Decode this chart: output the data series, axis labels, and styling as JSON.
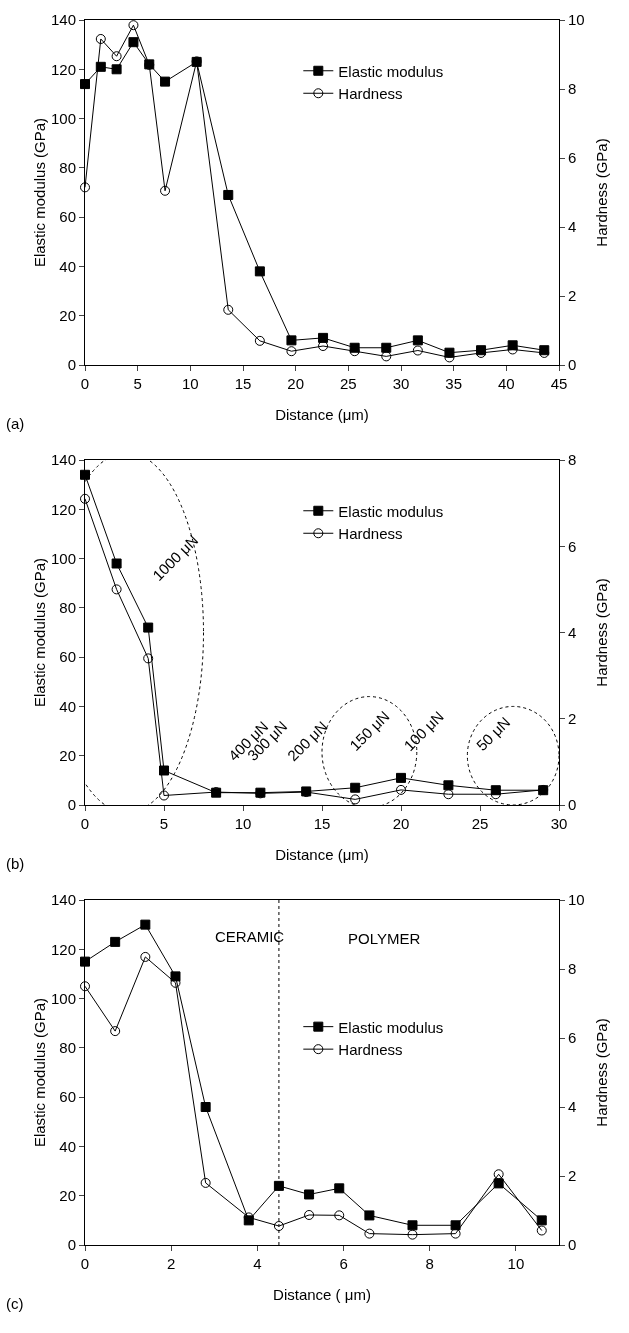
{
  "chart_data": [
    {
      "type": "line",
      "xlabel": "Distance (μm)",
      "ylabel": "Elastic modulus (GPa)",
      "y2label": "Hardness (GPa)",
      "xlim": [
        0,
        45
      ],
      "xticks": [
        0,
        5,
        10,
        15,
        20,
        25,
        30,
        35,
        40,
        45
      ],
      "ylim": [
        0,
        140
      ],
      "yticks": [
        0,
        20,
        40,
        60,
        80,
        100,
        120,
        140
      ],
      "y2lim": [
        0,
        10
      ],
      "y2ticks": [
        0,
        2,
        4,
        6,
        8,
        10
      ],
      "legend": "top right",
      "grid": false,
      "annotations": [
        "(a)"
      ],
      "x": [
        0,
        1.5,
        3,
        4.6,
        6.1,
        7.6,
        10.6,
        13.6,
        16.6,
        19.6,
        22.6,
        25.6,
        28.6,
        31.6,
        34.6,
        37.6,
        40.6,
        43.6
      ],
      "series": [
        {
          "name": "Elastic modulus",
          "color": "#000000",
          "marker": "square",
          "values": [
            114,
            121,
            120,
            131,
            122,
            115,
            123,
            69,
            38,
            10,
            11,
            7,
            7,
            10,
            5,
            6,
            8,
            6
          ]
        },
        {
          "name": "Hardness",
          "color": "#000000",
          "marker": "circle",
          "axis": "y2",
          "values": [
            5.15,
            9.45,
            8.95,
            9.85,
            8.7,
            5.05,
            8.8,
            1.6,
            0.7,
            0.4,
            0.55,
            0.4,
            0.25,
            0.42,
            0.22,
            0.35,
            0.45,
            0.35
          ]
        }
      ]
    },
    {
      "type": "line",
      "xlabel": "Distance (μm)",
      "ylabel": "Elastic modulus (GPa)",
      "y2label": "Hardness (GPa)",
      "xlim": [
        0,
        30
      ],
      "xticks": [
        0,
        5,
        10,
        15,
        20,
        25,
        30
      ],
      "ylim": [
        0,
        140
      ],
      "yticks": [
        0,
        20,
        40,
        60,
        80,
        100,
        120,
        140
      ],
      "y2lim": [
        0,
        8
      ],
      "y2ticks": [
        0,
        2,
        4,
        6,
        8
      ],
      "legend": "top right",
      "grid": false,
      "annotations": [
        "(b)",
        "1000 μN",
        "400 μN",
        "300 μN",
        "200 μN",
        "150 μN",
        "100 μN",
        "50 μN"
      ],
      "x": [
        0,
        2,
        4,
        5,
        8.3,
        11.1,
        14,
        17.1,
        20,
        23,
        26,
        29
      ],
      "series": [
        {
          "name": "Elastic modulus",
          "color": "#000000",
          "marker": "square",
          "values": [
            134,
            98,
            72,
            14,
            5,
            5,
            5.5,
            7,
            11,
            8,
            6,
            6
          ]
        },
        {
          "name": "Hardness",
          "color": "#000000",
          "marker": "circle",
          "axis": "y2",
          "values": [
            7.1,
            5.0,
            3.4,
            0.22,
            0.3,
            0.27,
            0.3,
            0.13,
            0.35,
            0.25,
            0.25,
            0.35
          ]
        }
      ]
    },
    {
      "type": "line",
      "xlabel": "Distance ( μm)",
      "ylabel": "Elastic modulus (GPa)",
      "y2label": "Hardness (GPa)",
      "xlim": [
        0,
        11
      ],
      "xticks": [
        0,
        2,
        4,
        6,
        8,
        10
      ],
      "ylim": [
        0,
        140
      ],
      "yticks": [
        0,
        20,
        40,
        60,
        80,
        100,
        120,
        140
      ],
      "y2lim": [
        0,
        10
      ],
      "y2ticks": [
        0,
        2,
        4,
        6,
        8,
        10
      ],
      "legend": "right",
      "grid": false,
      "annotations": [
        "(c)",
        "CERAMIC",
        "POLYMER"
      ],
      "ref_lines": [
        {
          "axis": "x",
          "value": 4.5,
          "line_style": "dotted"
        }
      ],
      "x": [
        0,
        0.7,
        1.4,
        2.1,
        2.8,
        3.8,
        4.5,
        5.2,
        5.9,
        6.6,
        7.6,
        8.6,
        9.6,
        10.6
      ],
      "series": [
        {
          "name": "Elastic modulus",
          "color": "#000000",
          "marker": "square",
          "values": [
            115,
            123,
            130,
            109,
            56,
            10,
            24,
            20.5,
            23,
            12,
            8,
            8,
            25,
            10
          ]
        },
        {
          "name": "Hardness",
          "color": "#000000",
          "marker": "circle",
          "axis": "y2",
          "values": [
            7.5,
            6.2,
            8.35,
            7.6,
            1.8,
            0.8,
            0.55,
            0.87,
            0.86,
            0.33,
            0.3,
            0.33,
            2.05,
            0.42
          ]
        }
      ]
    }
  ]
}
